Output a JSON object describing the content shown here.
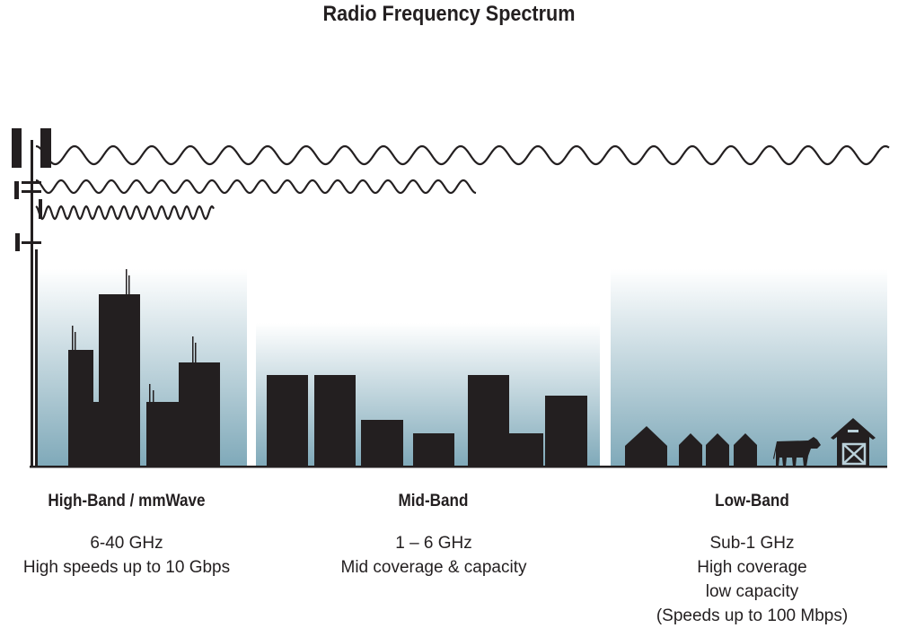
{
  "title": "Radio Frequency Spectrum",
  "bands": [
    {
      "name": "High-Band / mmWave",
      "lines": [
        "6-40 GHz",
        "High speeds up to 10 Gbps"
      ]
    },
    {
      "name": "Mid-Band",
      "lines": [
        "1 – 6 GHz",
        "Mid coverage & capacity"
      ]
    },
    {
      "name": "Low-Band",
      "lines": [
        "Sub-1 GHz",
        "High coverage",
        "low capacity",
        "(Speeds up to 100 Mbps)"
      ]
    }
  ],
  "colors": {
    "ink": "#231f20",
    "sky_bottom": "#7fa9b9",
    "sky_top": "#ffffff"
  },
  "icons": [
    "cell-tower-icon",
    "radio-wave-icon",
    "city-building-icon",
    "house-icon",
    "cow-icon",
    "barn-icon"
  ]
}
